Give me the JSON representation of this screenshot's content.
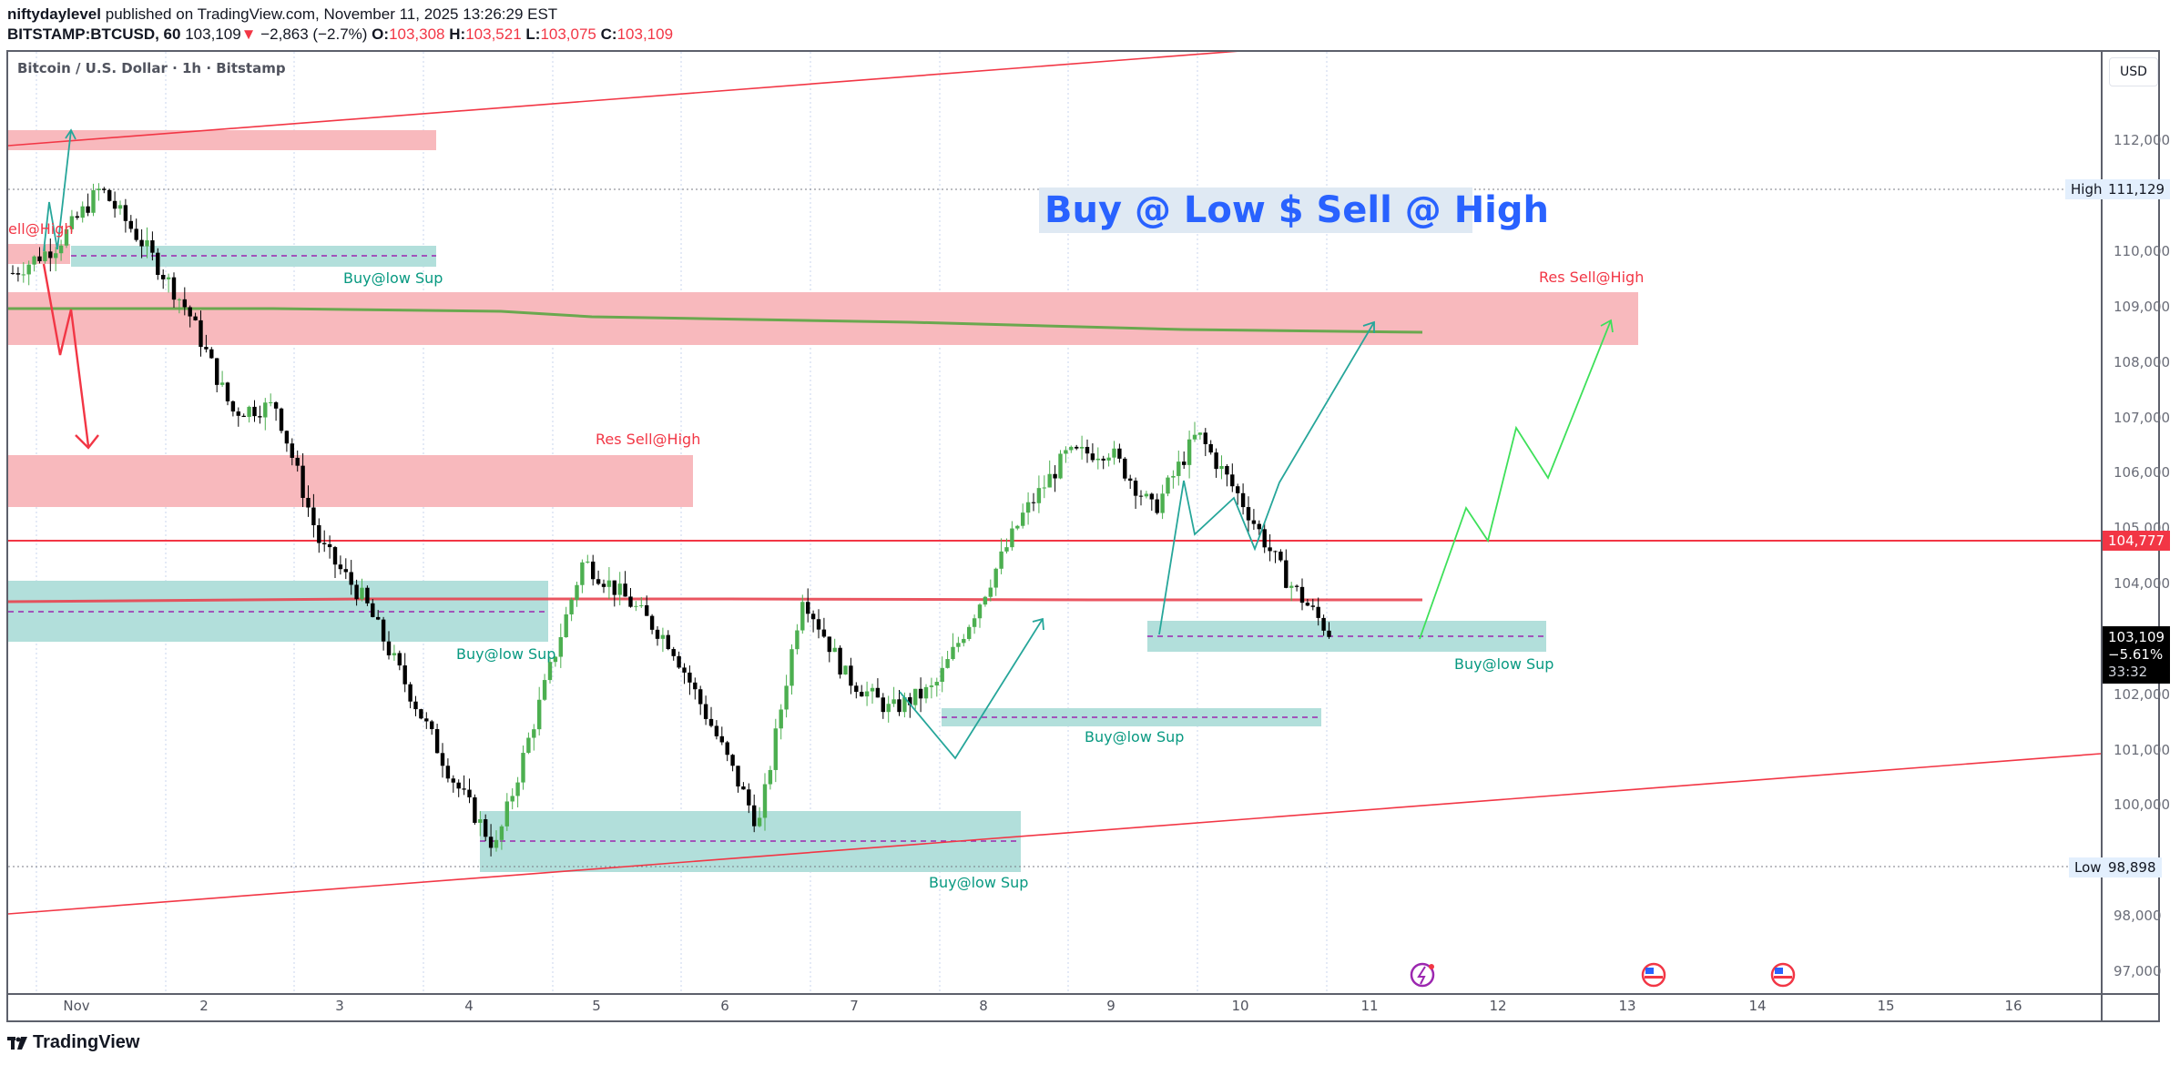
{
  "header": {
    "publisher": "niftydaylevel",
    "published_text": "published on TradingView.com, November 11, 2025 13:26:29 EST",
    "symbol": "BITSTAMP:BTCUSD, 60",
    "last": "103,109",
    "change_arrow": "▼",
    "change": "−2,863 (−2.7%)",
    "o_label": "O:",
    "o": "103,308",
    "h_label": "H:",
    "h": "103,521",
    "l_label": "L:",
    "l": "103,075",
    "c_label": "C:",
    "c": "103,109"
  },
  "legend": {
    "title": "Bitcoin / U.S. Dollar · 1h · Bitstamp"
  },
  "price_axis": {
    "currency_button": "USD",
    "ticks": [
      "112,000",
      "111,000",
      "110,000",
      "109,000",
      "108,000",
      "107,000",
      "106,000",
      "105,000",
      "104,000",
      "103,000",
      "102,000",
      "101,000",
      "100,000",
      "99,000",
      "98,000",
      "97,000"
    ],
    "high_label": "High",
    "high_value": "111,129",
    "low_label": "Low",
    "low_value": "98,898",
    "level_value": "104,777",
    "current_price": "103,109",
    "current_change": "−5.61%",
    "countdown": "33:32"
  },
  "time_axis": {
    "ticks": [
      "Nov",
      "2",
      "3",
      "4",
      "5",
      "6",
      "7",
      "8",
      "9",
      "10",
      "11",
      "12",
      "13",
      "14",
      "15",
      "16"
    ]
  },
  "annotations": {
    "main_title": "Buy @ Low $ Sell @ High",
    "sell_high_left": "ell@High",
    "res_sell_high_mid": "Res Sell@High",
    "res_sell_high_right": "Res Sell@High",
    "buy_low_1": "Buy@low Sup",
    "buy_low_2": "Buy@low Sup",
    "buy_low_3": "Buy@low Sup",
    "buy_low_4": "Buy@low Sup",
    "buy_low_5": "Buy@low Sup"
  },
  "events": [
    {
      "icon": "earnings-flash-icon"
    },
    {
      "icon": "us-flag-event-icon"
    },
    {
      "icon": "us-flag-event-icon"
    }
  ],
  "footer": {
    "brand": "TradingView"
  },
  "colors": {
    "up": "#4caf50",
    "down": "#000000",
    "resistance_zone": "#f8b9bd",
    "support_zone": "#b2dfdb",
    "level_line": "#f23645",
    "ma_line": "#6aa84f",
    "projection_teal": "#26a69a",
    "projection_green": "#3ee05a",
    "title_blue": "#2962ff"
  },
  "chart_data": {
    "type": "candlestick",
    "title": "Bitcoin / U.S. Dollar · 1h · Bitstamp",
    "xlabel": "",
    "ylabel": "USD",
    "ylim": [
      96800,
      113300
    ],
    "x_ticks": [
      "Nov",
      "2",
      "3",
      "4",
      "5",
      "6",
      "7",
      "8",
      "9",
      "10",
      "11",
      "12",
      "13",
      "14",
      "15",
      "16"
    ],
    "approx_close_path": [
      {
        "date": "Oct 31",
        "price": 109600
      },
      {
        "date": "Nov 1",
        "price": 110100
      },
      {
        "date": "Nov 2 06h",
        "price": 111129
      },
      {
        "date": "Nov 2 18h",
        "price": 110100
      },
      {
        "date": "Nov 3 00h",
        "price": 108900
      },
      {
        "date": "Nov 3 12h",
        "price": 107100
      },
      {
        "date": "Nov 3 22h",
        "price": 107200
      },
      {
        "date": "Nov 4 00h",
        "price": 104700
      },
      {
        "date": "Nov 4 08h",
        "price": 103700
      },
      {
        "date": "Nov 4 12h",
        "price": 102100
      },
      {
        "date": "Nov 4 16h",
        "price": 100500
      },
      {
        "date": "Nov 4 20h",
        "price": 99200
      },
      {
        "date": "Nov 5 06h",
        "price": 101800
      },
      {
        "date": "Nov 5 18h",
        "price": 104400
      },
      {
        "date": "Nov 6 06h",
        "price": 103700
      },
      {
        "date": "Nov 6 18h",
        "price": 102900
      },
      {
        "date": "Nov 7 00h",
        "price": 101300
      },
      {
        "date": "Nov 7 06h",
        "price": 99600
      },
      {
        "date": "Nov 7 14h",
        "price": 103800
      },
      {
        "date": "Nov 8 06h",
        "price": 102300
      },
      {
        "date": "Nov 8 18h",
        "price": 101700
      },
      {
        "date": "Nov 9 06h",
        "price": 102100
      },
      {
        "date": "Nov 9 12h",
        "price": 103600
      },
      {
        "date": "Nov 9 18h",
        "price": 105200
      },
      {
        "date": "Nov 10 00h",
        "price": 106300
      },
      {
        "date": "Nov 10 12h",
        "price": 106400
      },
      {
        "date": "Nov 10 18h",
        "price": 105300
      },
      {
        "date": "Nov 11 00h",
        "price": 106700
      },
      {
        "date": "Nov 11 06h",
        "price": 105500
      },
      {
        "date": "Nov 11 12h",
        "price": 104100
      },
      {
        "date": "Nov 11 14h",
        "price": 103109
      }
    ],
    "high": 111129,
    "low": 98898,
    "last": 103109,
    "horizontal_levels": [
      {
        "price": 104777,
        "style": "solid red"
      },
      {
        "price": 103700,
        "style": "red trendline"
      }
    ],
    "zones": [
      {
        "type": "resistance",
        "from": 111850,
        "to": 112150,
        "label": ""
      },
      {
        "type": "resistance",
        "from": 108300,
        "to": 109250,
        "label": "Res Sell@High"
      },
      {
        "type": "resistance",
        "from": 105400,
        "to": 106300,
        "label": "Res Sell@High"
      },
      {
        "type": "support",
        "from": 109700,
        "to": 110100,
        "label": "Buy@low Sup"
      },
      {
        "type": "support",
        "from": 102900,
        "to": 104000,
        "label": "Buy@low Sup"
      },
      {
        "type": "support",
        "from": 98900,
        "to": 99950,
        "label": "Buy@low Sup"
      },
      {
        "type": "support",
        "from": 101450,
        "to": 101750,
        "label": "Buy@low Sup"
      },
      {
        "type": "support",
        "from": 102800,
        "to": 103350,
        "label": "Buy@low Sup"
      }
    ],
    "moving_average": {
      "from": 108950,
      "to": 108550
    },
    "legend_position": "top-left",
    "grid": true
  }
}
